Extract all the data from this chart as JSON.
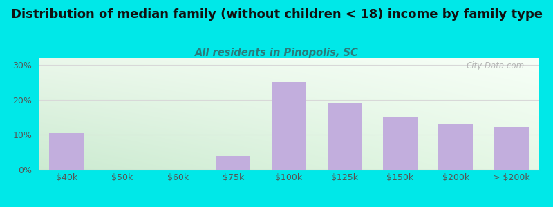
{
  "title": "Distribution of median family (without children < 18) income by family type",
  "subtitle": "All residents in Pinopolis, SC",
  "categories": [
    "$40k",
    "$50k",
    "$60k",
    "$75k",
    "$100k",
    "$125k",
    "$150k",
    "$200k",
    "> $200k"
  ],
  "values": [
    10.5,
    0,
    0,
    4.0,
    25.0,
    19.2,
    15.0,
    13.0,
    12.2
  ],
  "bar_color": "#c2aedd",
  "background_color": "#00e8e8",
  "title_color": "#111111",
  "subtitle_color": "#2a7a7a",
  "axis_label_color": "#555555",
  "ytick_labels": [
    "0%",
    "10%",
    "20%",
    "30%"
  ],
  "ytick_values": [
    0,
    10,
    20,
    30
  ],
  "ylim": [
    0,
    32
  ],
  "title_fontsize": 13.0,
  "subtitle_fontsize": 10.5,
  "tick_fontsize": 9.0,
  "watermark": "City-Data.com",
  "grid_color": "#d8d8d8",
  "grad_topleft": [
    0.92,
    0.97,
    0.92
  ],
  "grad_topright": [
    0.97,
    1.0,
    0.97
  ],
  "grad_bottomleft": [
    0.8,
    0.92,
    0.82
  ],
  "grad_bottomright": [
    0.9,
    0.97,
    0.9
  ]
}
